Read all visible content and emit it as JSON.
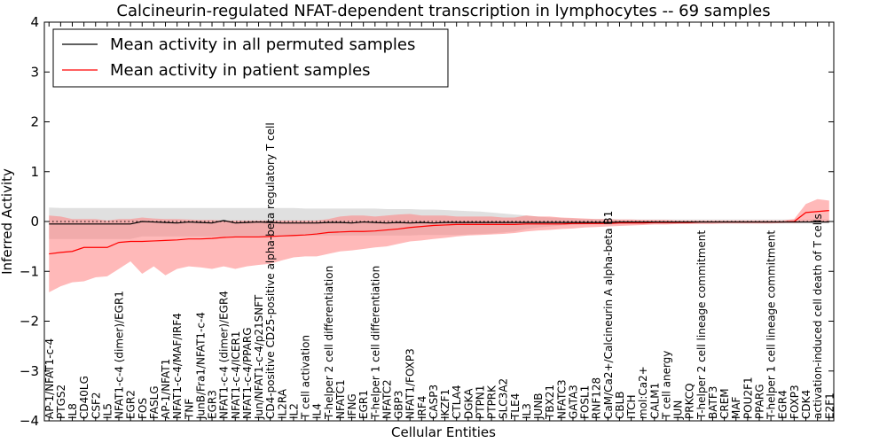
{
  "chart_data": {
    "type": "line",
    "title": "Calcineurin-regulated NFAT-dependent transcription in lymphocytes -- 69 samples",
    "xlabel": "Cellular Entities",
    "ylabel": "Inferred Activity",
    "ylim": [
      -4,
      4
    ],
    "yticks": [
      4,
      3,
      2,
      1,
      0,
      -1,
      -2,
      -3,
      -4
    ],
    "ytick_labels": [
      "4",
      "3",
      "2",
      "1",
      "0",
      "−1",
      "−2",
      "−3",
      "−4"
    ],
    "grid": false,
    "legend_position": "top-left",
    "zero_line": "dotted",
    "categories": [
      "AP-1/NFAT1-c-4",
      "PTGS2",
      "IL8",
      "CD40LG",
      "CSF2",
      "IL5",
      "NFAT1-c-4 (dimer)/EGR1",
      "EGR2",
      "FOS",
      "FASLG",
      "AP-1/NFAT1",
      "NFAT1-c-4/MAF/IRF4",
      "TNF",
      "JunB/Fra1/NFAT1-c-4",
      "EGR3",
      "NFAT1-c-4 (dimer)/EGR4",
      "NFAT1-c-4/ICER1",
      "NFAT1-c-4/PPARG",
      "Jun/NFAT1-c-4/p21SNFT",
      "CD4-positive CD25-positive alpha-beta regulatory T cell",
      "IL2RA",
      "IL2",
      "T cell activation",
      "IL4",
      "T-helper 2 cell differentiation",
      "NFATC1",
      "IFNG",
      "EGR1",
      "T-helper 1 cell differentiation",
      "NFATC2",
      "GBP3",
      "NFAT1/FOXP3",
      "IRF4",
      "CASP3",
      "IKZF1",
      "CTLA4",
      "DGKA",
      "PTPN1",
      "PTPRK",
      "SLC3A2",
      "TLE4",
      "IL3",
      "JUNB",
      "TBX21",
      "NFATC3",
      "GATA3",
      "FOSL1",
      "RNF128",
      "CaM/Ca2+/Calcineurin A alpha-beta B1",
      "CBLB",
      "ITCH",
      "mol:Ca2+",
      "CALM1",
      "T cell anergy",
      "JUN",
      "PRKCQ",
      "T-helper 2 cell lineage commitment",
      "BATF3",
      "CREM",
      "MAF",
      "POU2F1",
      "PPARG",
      "T-helper 1 cell lineage commitment",
      "EGR4",
      "FOXP3",
      "CDK4",
      "activation-induced cell death of T cells",
      "E2F1"
    ],
    "series": [
      {
        "name": "Mean activity in all permuted samples",
        "color": "#000000",
        "band_color": "#bbbbbb",
        "values": [
          -0.05,
          -0.05,
          -0.05,
          -0.05,
          -0.05,
          -0.05,
          -0.05,
          -0.05,
          0.0,
          -0.01,
          -0.02,
          -0.03,
          -0.01,
          -0.02,
          -0.03,
          0.02,
          -0.03,
          -0.02,
          -0.01,
          -0.02,
          -0.03,
          -0.03,
          -0.03,
          -0.03,
          -0.02,
          -0.02,
          -0.03,
          -0.01,
          -0.02,
          -0.03,
          -0.02,
          -0.03,
          -0.02,
          -0.03,
          -0.02,
          -0.02,
          -0.02,
          -0.02,
          -0.02,
          -0.02,
          -0.02,
          -0.02,
          -0.02,
          -0.02,
          -0.02,
          -0.02,
          -0.02,
          -0.02,
          -0.02,
          -0.01,
          -0.01,
          -0.01,
          -0.01,
          -0.01,
          -0.01,
          -0.01,
          -0.01,
          -0.01,
          -0.01,
          -0.01,
          -0.01,
          -0.01,
          -0.01,
          -0.01,
          -0.01,
          -0.01,
          -0.01,
          -0.01
        ],
        "lower": [
          -0.35,
          -0.35,
          -0.35,
          -0.35,
          -0.35,
          -0.35,
          -0.35,
          -0.35,
          -0.3,
          -0.3,
          -0.3,
          -0.3,
          -0.3,
          -0.3,
          -0.3,
          -0.3,
          -0.3,
          -0.3,
          -0.3,
          -0.3,
          -0.3,
          -0.3,
          -0.28,
          -0.28,
          -0.28,
          -0.28,
          -0.28,
          -0.28,
          -0.28,
          -0.28,
          -0.28,
          -0.28,
          -0.27,
          -0.27,
          -0.27,
          -0.27,
          -0.26,
          -0.25,
          -0.24,
          -0.22,
          -0.2,
          -0.15,
          -0.12,
          -0.1,
          -0.08,
          -0.07,
          -0.06,
          -0.05,
          -0.05,
          -0.05,
          -0.05,
          -0.05,
          -0.05,
          -0.05,
          -0.05,
          -0.04,
          -0.04,
          -0.04,
          -0.04,
          -0.04,
          -0.04,
          -0.04,
          -0.04,
          -0.04,
          -0.04,
          -0.04,
          -0.04,
          -0.04
        ],
        "upper": [
          0.28,
          0.27,
          0.27,
          0.27,
          0.27,
          0.27,
          0.27,
          0.27,
          0.27,
          0.27,
          0.27,
          0.27,
          0.27,
          0.27,
          0.27,
          0.27,
          0.27,
          0.27,
          0.27,
          0.27,
          0.27,
          0.27,
          0.26,
          0.26,
          0.26,
          0.26,
          0.26,
          0.26,
          0.26,
          0.25,
          0.25,
          0.25,
          0.24,
          0.24,
          0.23,
          0.22,
          0.21,
          0.2,
          0.18,
          0.16,
          0.14,
          0.12,
          0.1,
          0.08,
          0.07,
          0.06,
          0.05,
          0.05,
          0.05,
          0.04,
          0.04,
          0.04,
          0.04,
          0.04,
          0.04,
          0.04,
          0.04,
          0.04,
          0.04,
          0.04,
          0.04,
          0.04,
          0.04,
          0.04,
          0.04,
          0.04,
          0.04,
          0.04
        ]
      },
      {
        "name": "Mean activity in patient samples",
        "color": "#ff0000",
        "band_color": "#ff8080",
        "values": [
          -0.65,
          -0.62,
          -0.6,
          -0.52,
          -0.52,
          -0.52,
          -0.42,
          -0.4,
          -0.4,
          -0.39,
          -0.38,
          -0.37,
          -0.35,
          -0.35,
          -0.34,
          -0.32,
          -0.31,
          -0.31,
          -0.31,
          -0.3,
          -0.29,
          -0.28,
          -0.27,
          -0.25,
          -0.22,
          -0.21,
          -0.2,
          -0.2,
          -0.19,
          -0.17,
          -0.15,
          -0.12,
          -0.1,
          -0.08,
          -0.07,
          -0.06,
          -0.06,
          -0.06,
          -0.06,
          -0.06,
          -0.06,
          -0.05,
          -0.05,
          -0.05,
          -0.05,
          -0.04,
          -0.04,
          -0.04,
          -0.04,
          -0.03,
          -0.03,
          -0.03,
          -0.02,
          -0.02,
          -0.02,
          -0.02,
          -0.01,
          -0.01,
          -0.01,
          -0.01,
          -0.01,
          -0.01,
          -0.01,
          -0.01,
          0.0,
          0.18,
          0.2,
          0.22
        ],
        "lower": [
          -1.42,
          -1.3,
          -1.22,
          -1.2,
          -1.12,
          -1.1,
          -0.95,
          -0.8,
          -1.05,
          -0.9,
          -1.08,
          -0.95,
          -0.9,
          -0.92,
          -0.95,
          -0.9,
          -0.95,
          -0.9,
          -0.87,
          -0.85,
          -0.78,
          -0.72,
          -0.7,
          -0.7,
          -0.65,
          -0.6,
          -0.58,
          -0.55,
          -0.52,
          -0.5,
          -0.45,
          -0.4,
          -0.38,
          -0.35,
          -0.33,
          -0.3,
          -0.28,
          -0.27,
          -0.26,
          -0.25,
          -0.23,
          -0.2,
          -0.18,
          -0.17,
          -0.15,
          -0.14,
          -0.12,
          -0.11,
          -0.1,
          -0.09,
          -0.08,
          -0.07,
          -0.06,
          -0.06,
          -0.05,
          -0.05,
          -0.05,
          -0.05,
          -0.04,
          -0.04,
          -0.04,
          -0.04,
          -0.04,
          -0.03,
          -0.03,
          -0.02,
          -0.02,
          -0.02
        ],
        "upper": [
          0.12,
          0.1,
          0.05,
          0.05,
          0.05,
          0.02,
          0.05,
          0.05,
          0.08,
          0.06,
          0.05,
          0.05,
          0.04,
          0.03,
          0.03,
          0.02,
          0.02,
          0.02,
          0.02,
          0.02,
          0.02,
          0.02,
          0.02,
          0.02,
          0.05,
          0.1,
          0.12,
          0.12,
          0.1,
          0.12,
          0.14,
          0.15,
          0.12,
          0.12,
          0.12,
          0.1,
          0.1,
          0.1,
          0.1,
          0.08,
          0.08,
          0.12,
          0.1,
          0.1,
          0.08,
          0.07,
          0.06,
          0.05,
          0.05,
          0.04,
          0.04,
          0.03,
          0.03,
          0.03,
          0.02,
          0.02,
          0.02,
          0.02,
          0.02,
          0.02,
          0.02,
          0.02,
          0.02,
          0.02,
          0.05,
          0.35,
          0.45,
          0.42
        ]
      }
    ]
  }
}
